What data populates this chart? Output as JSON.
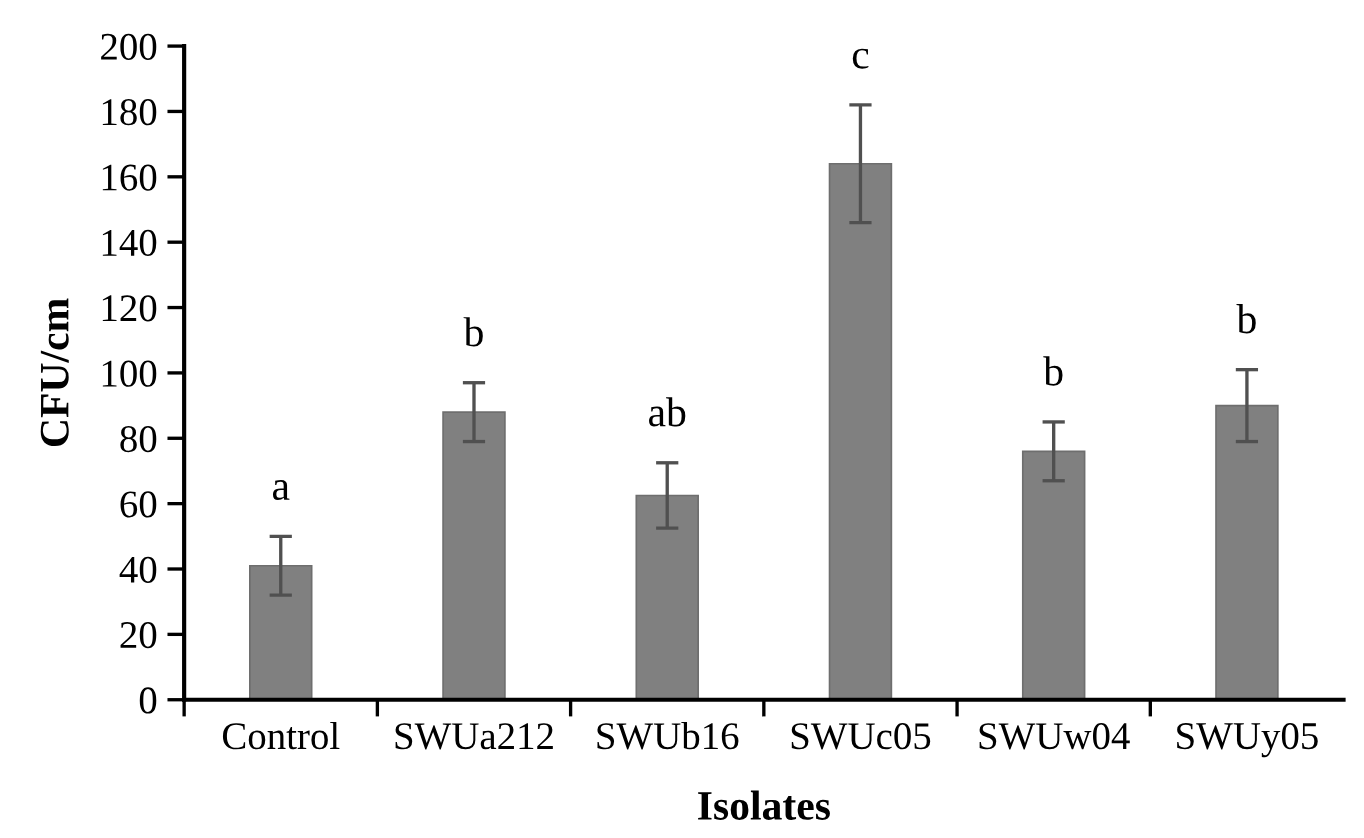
{
  "chart_data": {
    "type": "bar",
    "xlabel": "Isolates",
    "ylabel": "CFU/cm",
    "categories": [
      "Control",
      "SWUa212",
      "SWUb16",
      "SWUc05",
      "SWUw04",
      "SWUy05"
    ],
    "values": [
      41,
      88,
      62.5,
      164,
      76,
      90
    ],
    "errors": [
      9,
      9,
      10,
      18,
      9,
      11
    ],
    "color": "#808080",
    "ylim": [
      0,
      200
    ],
    "yticks": [
      0,
      20,
      40,
      60,
      80,
      100,
      120,
      140,
      160,
      180,
      200
    ],
    "grid": false,
    "annotations": [
      "a",
      "b",
      "ab",
      "c",
      "b",
      "b"
    ]
  }
}
